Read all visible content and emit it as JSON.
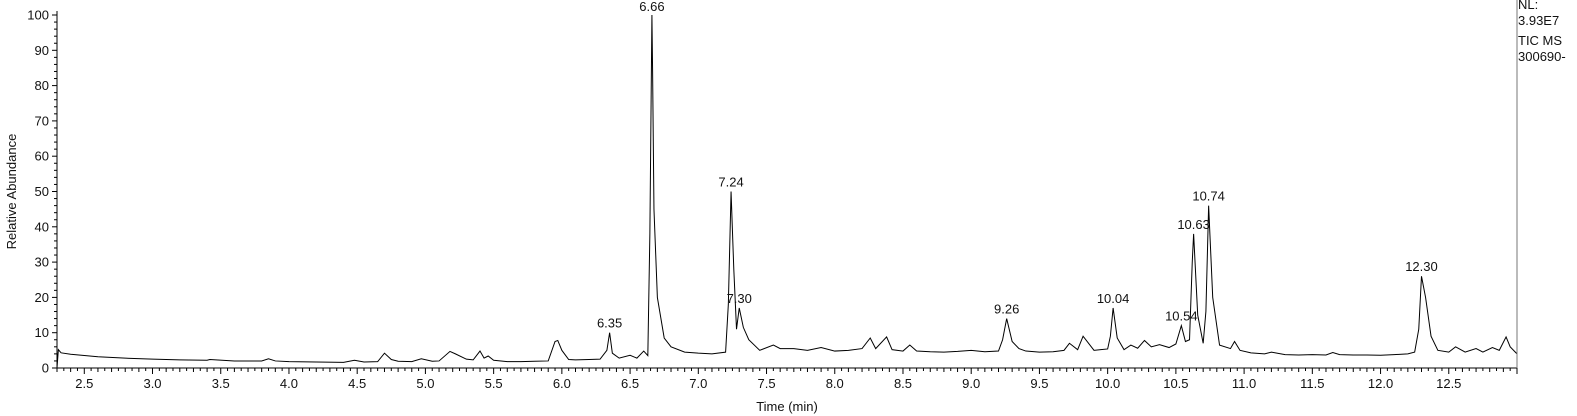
{
  "info": {
    "nl_label": "NL:",
    "nl_value": "3.93E7",
    "trace_label": "TIC  MS",
    "file_label": "300690-"
  },
  "chart_data": {
    "type": "line",
    "title": "",
    "xlabel": "Time (min)",
    "ylabel": "Relative Abundance",
    "xlim": [
      2.3,
      13.0
    ],
    "ylim": [
      0,
      100
    ],
    "x_ticks": [
      2.5,
      3.0,
      3.5,
      4.0,
      4.5,
      5.0,
      5.5,
      6.0,
      6.5,
      7.0,
      7.5,
      8.0,
      8.5,
      9.0,
      9.5,
      10.0,
      10.5,
      11.0,
      11.5,
      12.0,
      12.5
    ],
    "x_tick_labels": [
      "2.5",
      "3.0",
      "3.5",
      "4.0",
      "4.5",
      "5.0",
      "5.5",
      "6.0",
      "6.5",
      "7.0",
      "7.5",
      "8.0",
      "8.5",
      "9.0",
      "9.5",
      "10.0",
      "10.5",
      "11.0",
      "11.5",
      "12.0",
      "12.5"
    ],
    "y_ticks": [
      0,
      10,
      20,
      30,
      40,
      50,
      60,
      70,
      80,
      90,
      100
    ],
    "y_tick_labels": [
      "0",
      "10",
      "20",
      "30",
      "40",
      "50",
      "60",
      "70",
      "80",
      "90",
      "100"
    ],
    "grid": false,
    "legend": "none",
    "line_color": "#000000",
    "peak_labels": [
      {
        "x": 6.35,
        "y": 10,
        "text": "6.35"
      },
      {
        "x": 6.66,
        "y": 100,
        "text": "6.66"
      },
      {
        "x": 7.24,
        "y": 50,
        "text": "7.24"
      },
      {
        "x": 7.3,
        "y": 17,
        "text": "7.30"
      },
      {
        "x": 9.26,
        "y": 14,
        "text": "9.26"
      },
      {
        "x": 10.04,
        "y": 17,
        "text": "10.04"
      },
      {
        "x": 10.54,
        "y": 12,
        "text": "10.54"
      },
      {
        "x": 10.63,
        "y": 38,
        "text": "10.63"
      },
      {
        "x": 10.74,
        "y": 46,
        "text": "10.74"
      },
      {
        "x": 12.3,
        "y": 26,
        "text": "12.30"
      }
    ],
    "series": [
      {
        "x": [
          2.3,
          2.31,
          2.33,
          2.4,
          2.6,
          2.8,
          3.0,
          3.2,
          3.4,
          3.42,
          3.6,
          3.8,
          3.85,
          3.9,
          4.0,
          4.2,
          4.4,
          4.48,
          4.55,
          4.65,
          4.7,
          4.75,
          4.8,
          4.9,
          4.97,
          5.05,
          5.1,
          5.18,
          5.22,
          5.3,
          5.35,
          5.4,
          5.43,
          5.46,
          5.5,
          5.6,
          5.7,
          5.8,
          5.9,
          5.95,
          5.97,
          6.0,
          6.05,
          6.1,
          6.2,
          6.28,
          6.33,
          6.35,
          6.37,
          6.42,
          6.5,
          6.55,
          6.6,
          6.63,
          6.645,
          6.66,
          6.665,
          6.675,
          6.7,
          6.75,
          6.8,
          6.9,
          7.0,
          7.1,
          7.2,
          7.22,
          7.24,
          7.26,
          7.28,
          7.3,
          7.33,
          7.37,
          7.45,
          7.55,
          7.6,
          7.7,
          7.8,
          7.9,
          8.0,
          8.1,
          8.2,
          8.26,
          8.3,
          8.38,
          8.42,
          8.5,
          8.55,
          8.6,
          8.7,
          8.8,
          8.9,
          9.0,
          9.1,
          9.2,
          9.23,
          9.26,
          9.3,
          9.35,
          9.4,
          9.5,
          9.6,
          9.68,
          9.72,
          9.78,
          9.82,
          9.9,
          9.95,
          10.0,
          10.02,
          10.04,
          10.07,
          10.12,
          10.17,
          10.22,
          10.27,
          10.32,
          10.38,
          10.45,
          10.5,
          10.54,
          10.57,
          10.6,
          10.62,
          10.63,
          10.66,
          10.7,
          10.72,
          10.74,
          10.77,
          10.82,
          10.9,
          10.93,
          10.97,
          11.05,
          11.15,
          11.2,
          11.3,
          11.4,
          11.5,
          11.6,
          11.65,
          11.7,
          11.8,
          11.9,
          12.0,
          12.1,
          12.2,
          12.25,
          12.28,
          12.3,
          12.33,
          12.37,
          12.42,
          12.5,
          12.55,
          12.62,
          12.7,
          12.75,
          12.82,
          12.87,
          12.92,
          12.95,
          13.0
        ],
        "y": [
          0,
          5.2,
          4.3,
          3.9,
          3.2,
          2.8,
          2.5,
          2.3,
          2.2,
          2.4,
          2.0,
          2.0,
          2.6,
          2.0,
          1.8,
          1.7,
          1.6,
          2.2,
          1.7,
          1.8,
          4.2,
          2.4,
          1.9,
          1.8,
          2.6,
          1.9,
          2.0,
          4.7,
          4.0,
          2.5,
          2.3,
          4.8,
          2.8,
          3.4,
          2.2,
          1.8,
          1.8,
          1.9,
          2.0,
          7.5,
          7.8,
          5.0,
          2.4,
          2.3,
          2.4,
          2.5,
          5.0,
          10,
          4.2,
          2.8,
          3.6,
          2.8,
          4.8,
          3.5,
          38,
          100,
          84,
          45,
          20,
          8.5,
          6.0,
          4.5,
          4.2,
          4.0,
          4.5,
          18,
          50,
          28,
          11,
          17,
          11.5,
          8.0,
          5.0,
          6.5,
          5.5,
          5.5,
          5.0,
          5.8,
          4.8,
          5.0,
          5.5,
          8.5,
          5.5,
          8.8,
          5.2,
          4.8,
          6.5,
          4.8,
          4.6,
          4.5,
          4.7,
          5.0,
          4.6,
          4.8,
          8.0,
          14,
          7.5,
          5.5,
          4.8,
          4.5,
          4.6,
          5.0,
          7.0,
          5.2,
          9.0,
          5.0,
          5.2,
          5.4,
          9.0,
          17,
          8.5,
          5.2,
          6.5,
          5.6,
          7.8,
          6.0,
          6.6,
          5.8,
          6.8,
          12,
          7.5,
          8.0,
          30,
          38,
          15,
          7.0,
          16,
          46,
          20,
          6.5,
          5.5,
          7.5,
          5.0,
          4.3,
          4.0,
          4.5,
          3.8,
          3.7,
          3.8,
          3.7,
          4.4,
          3.8,
          3.7,
          3.7,
          3.6,
          3.8,
          4.0,
          4.5,
          11,
          26,
          20,
          9.0,
          5.0,
          4.5,
          6.0,
          4.5,
          5.5,
          4.5,
          5.8,
          5.0,
          8.8,
          6.0,
          4.0
        ]
      }
    ]
  }
}
